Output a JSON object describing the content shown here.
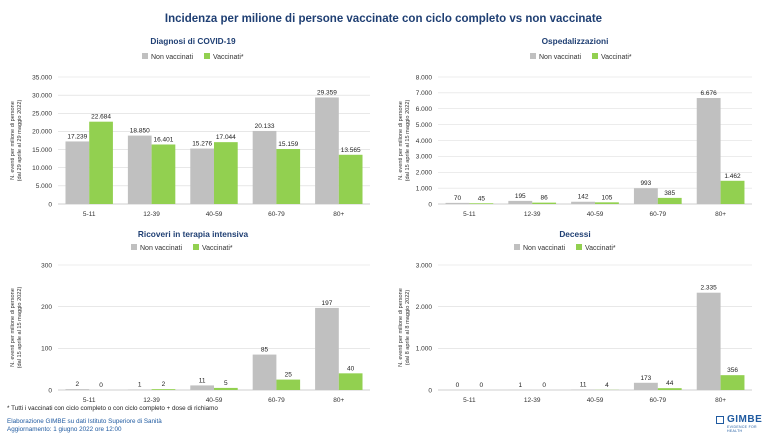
{
  "main_title": "Incidenza per milione di persone vaccinate con ciclo completo vs non vaccinate",
  "colors": {
    "non_vaccinati": "#c0c0c0",
    "vaccinati": "#92d050",
    "title": "#1f3f73",
    "grid": "#d9d9d9"
  },
  "footnote": "* Tutti i vaccinati con ciclo completo o con ciclo completo + dose di richiamo",
  "credit_line1": "Elaborazione GIMBE su dati Istituto Superiore di Sanità",
  "credit_line2": "Aggiornamento: 1 giugno 2022 ore 12:00",
  "logo": {
    "text": "GIMBE",
    "subtext": "EVIDENCE FOR HEALTH"
  },
  "chart_data": [
    {
      "type": "bar",
      "title": "Diagnosi di COVID-19",
      "ylabel": "N. eventi per milione di persone (dal 29 aprile al 29 maggio 2022)",
      "ylabel_lines": [
        "N. eventi per milione di persone",
        "(dal 29 aprile al 29 maggio 2022)"
      ],
      "categories": [
        "5-11",
        "12-39",
        "40-59",
        "60-79",
        "80+"
      ],
      "ylim": [
        0,
        35000
      ],
      "yticks": [
        "0",
        "5.000",
        "10.000",
        "15.000",
        "20.000",
        "25.000",
        "30.000",
        "35.000"
      ],
      "grid": true,
      "legend_position": "top",
      "series": [
        {
          "name": "Non vaccinati",
          "values": [
            17239,
            18850,
            15276,
            20133,
            29359
          ],
          "labels": [
            "17.239",
            "18.850",
            "15.276",
            "20.133",
            "29.359"
          ]
        },
        {
          "name": "Vaccinati*",
          "values": [
            22684,
            16401,
            17044,
            15159,
            13565
          ],
          "labels": [
            "22.684",
            "16.401",
            "17.044",
            "15.159",
            "13.565"
          ]
        }
      ]
    },
    {
      "type": "bar",
      "title": "Ospedalizzazioni",
      "ylabel": "N. eventi per milione di persone (dal 15 aprile al 15 maggio 2022)",
      "ylabel_lines": [
        "N. eventi per milione di persone",
        "(dal 15 aprile al 15 maggio 2022)"
      ],
      "categories": [
        "5-11",
        "12-39",
        "40-59",
        "60-79",
        "80+"
      ],
      "ylim": [
        0,
        8000
      ],
      "yticks": [
        "0",
        "1.000",
        "2.000",
        "3.000",
        "4.000",
        "5.000",
        "6.000",
        "7.000",
        "8.000"
      ],
      "grid": true,
      "legend_position": "top",
      "series": [
        {
          "name": "Non vaccinati",
          "values": [
            70,
            195,
            142,
            993,
            6676
          ],
          "labels": [
            "70",
            "195",
            "142",
            "993",
            "6.676"
          ]
        },
        {
          "name": "Vaccinati*",
          "values": [
            45,
            86,
            105,
            385,
            1462
          ],
          "labels": [
            "45",
            "86",
            "105",
            "385",
            "1.462"
          ]
        }
      ]
    },
    {
      "type": "bar",
      "title": "Ricoveri in terapia intensiva",
      "ylabel": "N. eventi per milione di persone (dal 15 aprile al 15 maggio 2022)",
      "ylabel_lines": [
        "N. eventi per milione di persone",
        "(dal 15 aprile al 15 maggio 2022)"
      ],
      "categories": [
        "5-11",
        "12-39",
        "40-59",
        "60-79",
        "80+"
      ],
      "ylim": [
        0,
        300
      ],
      "yticks": [
        "0",
        "100",
        "200",
        "300"
      ],
      "grid": true,
      "legend_position": "top",
      "series": [
        {
          "name": "Non vaccinati",
          "values": [
            2,
            1,
            11,
            85,
            197
          ],
          "labels": [
            "2",
            "1",
            "11",
            "85",
            "197"
          ]
        },
        {
          "name": "Vaccinati*",
          "values": [
            0,
            2,
            5,
            25,
            40
          ],
          "labels": [
            "0",
            "2",
            "5",
            "25",
            "40"
          ]
        }
      ]
    },
    {
      "type": "bar",
      "title": "Decessi",
      "ylabel": "N. eventi per milione di persone (dal 8 aprile al 8 maggio 2022)",
      "ylabel_lines": [
        "N. eventi per milione di persone",
        "(dal 8 aprile al 8 maggio 2022)"
      ],
      "categories": [
        "5-11",
        "12-39",
        "40-59",
        "60-79",
        "80+"
      ],
      "ylim": [
        0,
        3000
      ],
      "yticks": [
        "0",
        "1.000",
        "2.000",
        "3.000"
      ],
      "grid": true,
      "legend_position": "top",
      "series": [
        {
          "name": "Non vaccinati",
          "values": [
            0,
            1,
            11,
            173,
            2335
          ],
          "labels": [
            "0",
            "1",
            "11",
            "173",
            "2.335"
          ]
        },
        {
          "name": "Vaccinati*",
          "values": [
            0,
            0,
            4,
            44,
            356
          ],
          "labels": [
            "0",
            "0",
            "4",
            "44",
            "356"
          ]
        }
      ]
    }
  ]
}
